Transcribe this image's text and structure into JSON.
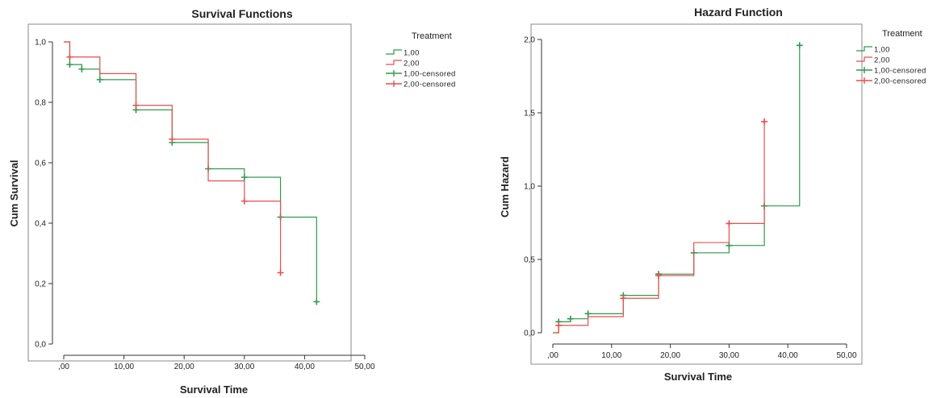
{
  "colors": {
    "series1": "#2e9a4e",
    "series2": "#e64f4f"
  },
  "chart_data": [
    {
      "type": "line",
      "step": true,
      "title": "Survival Functions",
      "xlabel": "Survival Time",
      "ylabel": "Cum Survival",
      "xlim": [
        0,
        50
      ],
      "ylim": [
        0,
        1
      ],
      "xticks": [
        ",00",
        "10,00",
        "20,00",
        "30,00",
        "40,00",
        "50,00"
      ],
      "yticks": [
        "0,0",
        "0,2",
        "0,4",
        "0,6",
        "0,8",
        "1,0"
      ],
      "grid": false,
      "legend": {
        "title": "Treatment",
        "placement": "right",
        "entries": [
          "1,00",
          "2,00",
          "1,00-censored",
          "2,00-censored"
        ]
      },
      "series": [
        {
          "name": "1,00",
          "x": [
            1,
            3,
            6,
            12,
            18,
            24,
            30,
            36,
            42
          ],
          "y": [
            0.925,
            0.91,
            0.875,
            0.775,
            0.667,
            0.58,
            0.552,
            0.42,
            0.14
          ],
          "censored_x": [
            1,
            3,
            6,
            12,
            18,
            24,
            30,
            36,
            42
          ],
          "censored_y": [
            0.925,
            0.91,
            0.875,
            0.775,
            0.667,
            0.58,
            0.552,
            0.42,
            0.14
          ]
        },
        {
          "name": "2,00",
          "x": [
            1,
            6,
            12,
            18,
            24,
            30,
            36
          ],
          "y": [
            0.95,
            0.895,
            0.79,
            0.678,
            0.54,
            0.473,
            0.236
          ],
          "censored_x": [
            1,
            12,
            18,
            30,
            36
          ],
          "censored_y": [
            0.95,
            0.79,
            0.678,
            0.473,
            0.236
          ]
        }
      ]
    },
    {
      "type": "line",
      "step": true,
      "title": "Hazard Function",
      "xlabel": "Survival Time",
      "ylabel": "Cum Hazard",
      "xlim": [
        0,
        50
      ],
      "ylim": [
        0,
        2
      ],
      "xticks": [
        ",00",
        "10,00",
        "20,00",
        "30,00",
        "40,00",
        "50,00"
      ],
      "yticks": [
        "0,0",
        "0,5",
        "1,0",
        "1,5",
        "2,0"
      ],
      "grid": false,
      "legend": {
        "title": "Treatment",
        "placement": "right",
        "entries": [
          "1,00",
          "2,00",
          "1,00-censored",
          "2,00-censored"
        ]
      },
      "series": [
        {
          "name": "1,00",
          "x": [
            1,
            3,
            6,
            12,
            18,
            24,
            30,
            36,
            42
          ],
          "y": [
            0.075,
            0.095,
            0.13,
            0.255,
            0.4,
            0.545,
            0.595,
            0.865,
            1.96
          ],
          "censored_x": [
            1,
            3,
            6,
            12,
            18,
            24,
            30,
            36,
            42
          ],
          "censored_y": [
            0.075,
            0.095,
            0.13,
            0.255,
            0.4,
            0.545,
            0.595,
            0.865,
            1.96
          ]
        },
        {
          "name": "2,00",
          "x": [
            1,
            6,
            12,
            18,
            24,
            30,
            36
          ],
          "y": [
            0.05,
            0.11,
            0.235,
            0.39,
            0.615,
            0.745,
            1.44
          ],
          "censored_x": [
            1,
            12,
            18,
            30,
            36
          ],
          "censored_y": [
            0.05,
            0.235,
            0.39,
            0.745,
            1.44
          ]
        }
      ]
    }
  ]
}
